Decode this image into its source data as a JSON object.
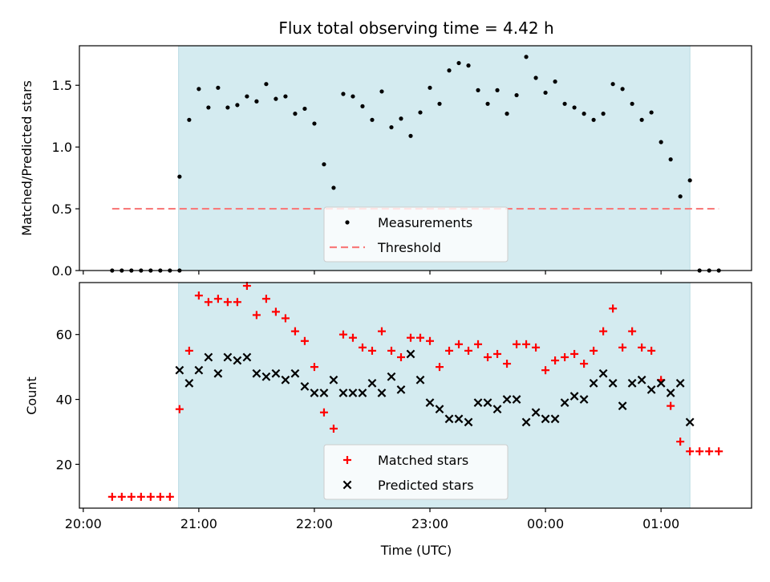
{
  "chart_data": {
    "title": "Flux total observing time = 4.42 h",
    "xlabel": "Time (UTC)",
    "x_unit": "minutes after 20:00 UTC",
    "xlim": [
      -2,
      347
    ],
    "x_ticks": [
      {
        "t": 0,
        "label": "20:00"
      },
      {
        "t": 60,
        "label": "21:00"
      },
      {
        "t": 120,
        "label": "22:00"
      },
      {
        "t": 180,
        "label": "23:00"
      },
      {
        "t": 240,
        "label": "00:00"
      },
      {
        "t": 300,
        "label": "01:00"
      }
    ],
    "shaded_interval": [
      49.5,
      315
    ],
    "colors": {
      "shade": "#d4ebf0",
      "measurements": "#000000",
      "threshold": "#f87b7b",
      "matched": "#ff0000",
      "predicted": "#000000"
    },
    "top_panel": {
      "type": "scatter",
      "ylabel": "Matched/Predicted stars",
      "ylim": [
        0,
        1.82
      ],
      "y_ticks": [
        "0.0",
        "0.5",
        "1.0",
        "1.5"
      ],
      "threshold": {
        "name": "Threshold",
        "value": 0.5,
        "x_range": [
          15,
          330
        ]
      },
      "legend": {
        "position": "lower-center",
        "entries": [
          "Measurements",
          "Threshold"
        ]
      },
      "measurements": {
        "name": "Measurements",
        "x": [
          15,
          20,
          25,
          30,
          35,
          40,
          45,
          50,
          50,
          55,
          60,
          65,
          70,
          75,
          80,
          85,
          90,
          95,
          100,
          105,
          110,
          115,
          120,
          125,
          130,
          135,
          140,
          145,
          150,
          155,
          160,
          165,
          170,
          175,
          180,
          185,
          190,
          195,
          200,
          205,
          210,
          215,
          220,
          225,
          230,
          235,
          240,
          245,
          250,
          255,
          260,
          265,
          270,
          275,
          280,
          285,
          290,
          295,
          300,
          305,
          310,
          315,
          320,
          325,
          330
        ],
        "y": [
          0,
          0,
          0,
          0,
          0,
          0,
          0,
          0,
          0.76,
          1.22,
          1.47,
          1.32,
          1.48,
          1.32,
          1.34,
          1.41,
          1.37,
          1.51,
          1.39,
          1.41,
          1.27,
          1.31,
          1.19,
          0.86,
          0.67,
          1.43,
          1.41,
          1.33,
          1.22,
          1.45,
          1.16,
          1.23,
          1.09,
          1.28,
          1.48,
          1.35,
          1.62,
          1.68,
          1.66,
          1.46,
          1.35,
          1.46,
          1.27,
          1.42,
          1.73,
          1.56,
          1.44,
          1.53,
          1.35,
          1.32,
          1.27,
          1.22,
          1.27,
          1.51,
          1.47,
          1.35,
          1.22,
          1.28,
          1.04,
          0.9,
          0.6,
          0.73,
          0,
          0,
          0
        ]
      }
    },
    "bottom_panel": {
      "type": "scatter",
      "ylabel": "Count",
      "ylim": [
        6.5,
        76
      ],
      "y_ticks": [
        "20",
        "40",
        "60"
      ],
      "legend": {
        "position": "lower-center",
        "entries": [
          "Matched stars",
          "Predicted stars"
        ]
      },
      "matched": {
        "name": "Matched stars",
        "x": [
          15,
          20,
          25,
          30,
          35,
          40,
          45,
          50,
          55,
          60,
          65,
          70,
          75,
          80,
          85,
          90,
          95,
          100,
          105,
          110,
          115,
          120,
          125,
          130,
          135,
          140,
          145,
          150,
          155,
          160,
          165,
          170,
          175,
          180,
          185,
          190,
          195,
          200,
          205,
          210,
          215,
          220,
          225,
          230,
          235,
          240,
          245,
          250,
          255,
          260,
          265,
          270,
          275,
          280,
          285,
          290,
          295,
          300,
          305,
          310,
          315,
          320,
          325,
          330
        ],
        "y": [
          10,
          10,
          10,
          10,
          10,
          10,
          10,
          37,
          55,
          72,
          70,
          71,
          70,
          70,
          75,
          66,
          71,
          67,
          65,
          61,
          58,
          50,
          36,
          31,
          60,
          59,
          56,
          55,
          61,
          55,
          53,
          59,
          59,
          58,
          50,
          55,
          57,
          55,
          57,
          53,
          54,
          51,
          57,
          57,
          56,
          49,
          52,
          53,
          54,
          51,
          55,
          61,
          68,
          56,
          61,
          56,
          55,
          46,
          38,
          27,
          24,
          24,
          24,
          24
        ]
      },
      "predicted": {
        "name": "Predicted stars",
        "x": [
          50,
          55,
          60,
          65,
          70,
          75,
          80,
          85,
          90,
          95,
          100,
          105,
          110,
          115,
          120,
          125,
          130,
          135,
          140,
          145,
          150,
          155,
          160,
          165,
          170,
          175,
          180,
          185,
          190,
          195,
          200,
          205,
          210,
          215,
          220,
          225,
          230,
          235,
          240,
          245,
          250,
          255,
          260,
          265,
          270,
          275,
          280,
          285,
          290,
          295,
          300,
          305,
          310,
          315
        ],
        "y": [
          49,
          45,
          49,
          53,
          48,
          53,
          52,
          53,
          48,
          47,
          48,
          46,
          48,
          44,
          42,
          42,
          46,
          42,
          42,
          42,
          45,
          42,
          47,
          43,
          54,
          46,
          39,
          37,
          34,
          34,
          33,
          39,
          39,
          37,
          40,
          40,
          33,
          36,
          34,
          34,
          39,
          41,
          40,
          45,
          48,
          45,
          38,
          45,
          46,
          43,
          45,
          42,
          45,
          33
        ]
      }
    }
  }
}
